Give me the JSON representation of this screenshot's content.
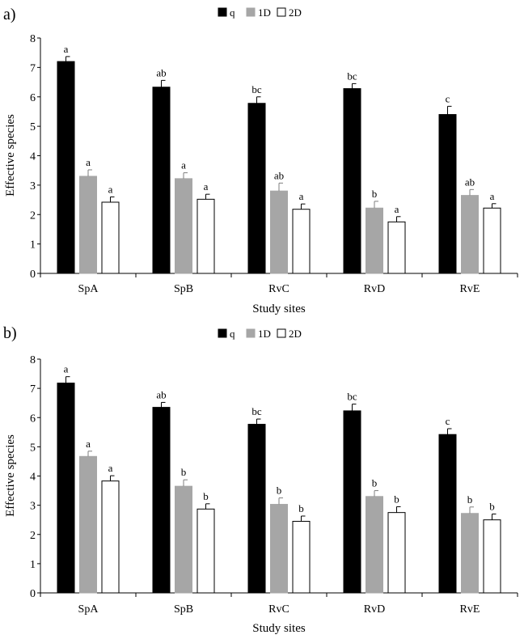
{
  "chart_data": [
    {
      "type": "bar",
      "panel_label": "a)",
      "categories": [
        "SpA",
        "SpB",
        "RvC",
        "RvD",
        "RvE"
      ],
      "xlabel": "Study sites",
      "ylabel": "Effective species",
      "ylim": [
        0,
        8
      ],
      "yticks": [
        "0",
        "1",
        "2",
        "3",
        "4",
        "5",
        "6",
        "7",
        "8"
      ],
      "legend": [
        "q",
        "1D",
        "2D"
      ],
      "legend_position": "top-center",
      "series": [
        {
          "name": "q",
          "color": "#000000",
          "values": [
            7.2,
            6.33,
            5.78,
            6.28,
            5.4
          ],
          "errors": [
            0.17,
            0.23,
            0.22,
            0.17,
            0.28
          ],
          "letters": [
            "a",
            "ab",
            "bc",
            "bc",
            "c"
          ]
        },
        {
          "name": "1D",
          "color": "#a6a6a6",
          "values": [
            3.3,
            3.22,
            2.8,
            2.22,
            2.65
          ],
          "errors": [
            0.22,
            0.2,
            0.27,
            0.23,
            0.2
          ],
          "letters": [
            "a",
            "a",
            "ab",
            "b",
            "ab"
          ]
        },
        {
          "name": "2D",
          "color": "#ffffff",
          "values": [
            2.42,
            2.52,
            2.18,
            1.75,
            2.22
          ],
          "errors": [
            0.18,
            0.17,
            0.18,
            0.18,
            0.15
          ],
          "letters": [
            "a",
            "a",
            "a",
            "a",
            "a"
          ]
        }
      ]
    },
    {
      "type": "bar",
      "panel_label": "b)",
      "categories": [
        "SpA",
        "SpB",
        "RvC",
        "RvD",
        "RvE"
      ],
      "xlabel": "Study sites",
      "ylabel": "Effective species",
      "ylim": [
        0,
        8
      ],
      "yticks": [
        "0",
        "1",
        "2",
        "3",
        "4",
        "5",
        "6",
        "7",
        "8"
      ],
      "legend": [
        "q",
        "1D",
        "2D"
      ],
      "legend_position": "top-center",
      "series": [
        {
          "name": "q",
          "color": "#000000",
          "values": [
            7.18,
            6.35,
            5.77,
            6.23,
            5.42
          ],
          "errors": [
            0.22,
            0.17,
            0.18,
            0.23,
            0.2
          ],
          "letters": [
            "a",
            "ab",
            "bc",
            "bc",
            "c"
          ]
        },
        {
          "name": "1D",
          "color": "#a6a6a6",
          "values": [
            4.67,
            3.65,
            3.03,
            3.3,
            2.72
          ],
          "errors": [
            0.18,
            0.22,
            0.22,
            0.2,
            0.22
          ],
          "letters": [
            "a",
            "b",
            "b",
            "b",
            "b"
          ]
        },
        {
          "name": "2D",
          "color": "#ffffff",
          "values": [
            3.83,
            2.87,
            2.45,
            2.75,
            2.5
          ],
          "errors": [
            0.18,
            0.18,
            0.18,
            0.2,
            0.2
          ],
          "letters": [
            "a",
            "b",
            "b",
            "b",
            "b"
          ]
        }
      ]
    }
  ]
}
